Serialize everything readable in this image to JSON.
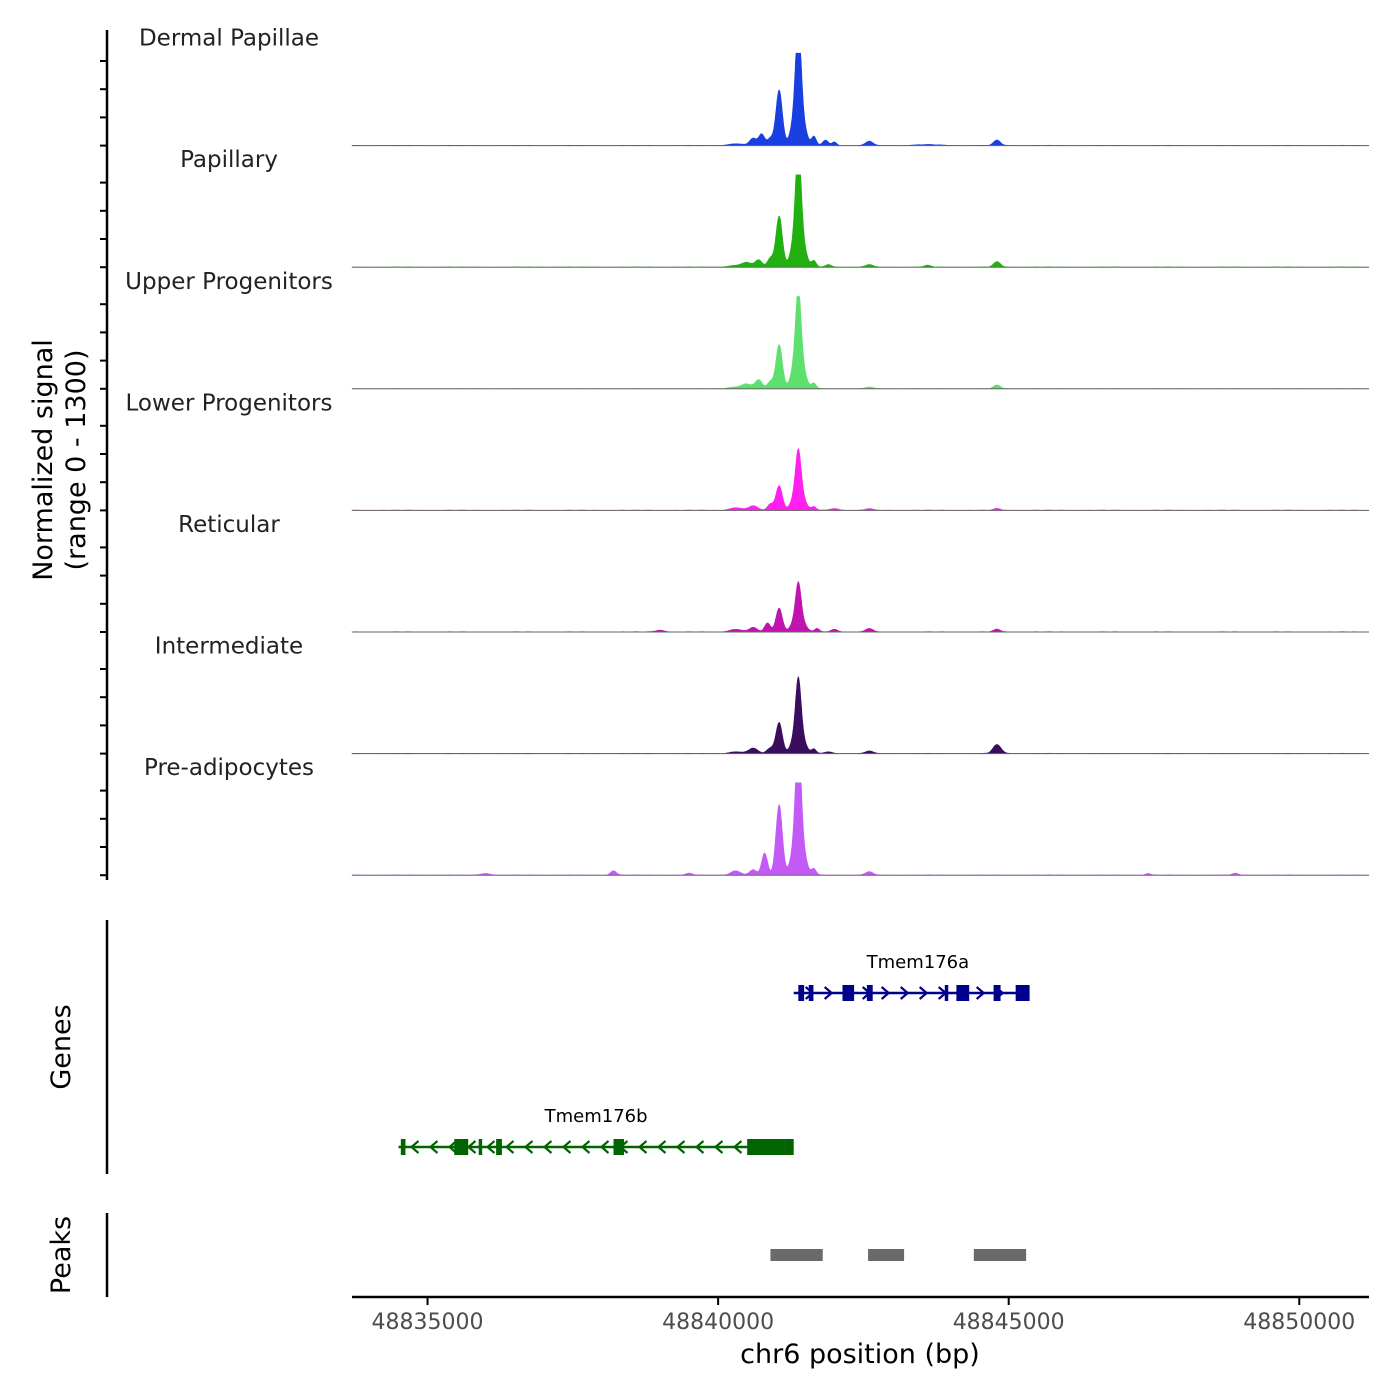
{
  "chart_data": {
    "type": "area",
    "xlabel": "chr6 position (bp)",
    "ylabel": "Normalized signal",
    "ylabel_sub": "(range 0 - 1300)",
    "xlim": [
      48833700,
      48851200
    ],
    "ylim": [
      0,
      1300
    ],
    "x_ticks": [
      48835000,
      48840000,
      48845000,
      48850000
    ],
    "x_tick_labels": [
      "48835000",
      "48840000",
      "48845000",
      "48850000"
    ],
    "tracks": [
      {
        "name": "Dermal Papillae",
        "color": "#1a3fe0",
        "peaks": [
          [
            48840600,
            0.08,
            60
          ],
          [
            48840750,
            0.13,
            50
          ],
          [
            48840900,
            0.08,
            50
          ],
          [
            48841050,
            0.63,
            55
          ],
          [
            48841380,
            0.88,
            45
          ],
          [
            48841380,
            0.55,
            90
          ],
          [
            48841650,
            0.1,
            40
          ],
          [
            48841850,
            0.06,
            50
          ],
          [
            48842000,
            0.04,
            40
          ],
          [
            48842600,
            0.05,
            60
          ],
          [
            48844800,
            0.06,
            60
          ],
          [
            48840300,
            0.02,
            120
          ],
          [
            48843600,
            0.01,
            200
          ]
        ]
      },
      {
        "name": "Papillary",
        "color": "#22b010",
        "peaks": [
          [
            48840500,
            0.05,
            80
          ],
          [
            48840700,
            0.08,
            60
          ],
          [
            48840900,
            0.1,
            50
          ],
          [
            48841050,
            0.58,
            55
          ],
          [
            48841380,
            0.85,
            45
          ],
          [
            48841380,
            0.55,
            90
          ],
          [
            48841650,
            0.07,
            40
          ],
          [
            48841900,
            0.03,
            50
          ],
          [
            48842600,
            0.03,
            60
          ],
          [
            48843600,
            0.02,
            60
          ],
          [
            48844800,
            0.06,
            60
          ],
          [
            48840300,
            0.02,
            120
          ]
        ]
      },
      {
        "name": "Upper Progenitors",
        "color": "#5ee06e",
        "peaks": [
          [
            48840500,
            0.05,
            80
          ],
          [
            48840700,
            0.1,
            60
          ],
          [
            48840900,
            0.08,
            50
          ],
          [
            48841050,
            0.5,
            55
          ],
          [
            48841380,
            0.7,
            45
          ],
          [
            48841380,
            0.45,
            90
          ],
          [
            48841650,
            0.06,
            40
          ],
          [
            48842600,
            0.02,
            60
          ],
          [
            48844800,
            0.04,
            60
          ],
          [
            48840300,
            0.02,
            120
          ]
        ]
      },
      {
        "name": "Lower Progenitors",
        "color": "#ff20f0",
        "peaks": [
          [
            48840300,
            0.03,
            100
          ],
          [
            48840600,
            0.05,
            80
          ],
          [
            48840900,
            0.07,
            50
          ],
          [
            48841050,
            0.28,
            55
          ],
          [
            48841380,
            0.42,
            45
          ],
          [
            48841380,
            0.28,
            90
          ],
          [
            48841650,
            0.04,
            40
          ],
          [
            48842000,
            0.02,
            80
          ],
          [
            48842600,
            0.02,
            60
          ],
          [
            48844800,
            0.02,
            60
          ]
        ]
      },
      {
        "name": "Reticular",
        "color": "#c014b0",
        "peaks": [
          [
            48840300,
            0.03,
            100
          ],
          [
            48840600,
            0.05,
            70
          ],
          [
            48840850,
            0.1,
            50
          ],
          [
            48841050,
            0.27,
            55
          ],
          [
            48841380,
            0.35,
            45
          ],
          [
            48841380,
            0.22,
            90
          ],
          [
            48841700,
            0.04,
            40
          ],
          [
            48842000,
            0.03,
            60
          ],
          [
            48842600,
            0.04,
            60
          ],
          [
            48844800,
            0.03,
            60
          ],
          [
            48839000,
            0.02,
            80
          ]
        ]
      },
      {
        "name": "Intermediate",
        "color": "#3a0d5e",
        "peaks": [
          [
            48840300,
            0.02,
            100
          ],
          [
            48840600,
            0.06,
            80
          ],
          [
            48840900,
            0.06,
            60
          ],
          [
            48841050,
            0.35,
            55
          ],
          [
            48841380,
            0.55,
            45
          ],
          [
            48841380,
            0.32,
            90
          ],
          [
            48841650,
            0.05,
            40
          ],
          [
            48841900,
            0.02,
            60
          ],
          [
            48842600,
            0.03,
            60
          ],
          [
            48844800,
            0.1,
            70
          ]
        ]
      },
      {
        "name": "Pre-adipocytes",
        "color": "#c35af5",
        "peaks": [
          [
            48838200,
            0.05,
            50
          ],
          [
            48840300,
            0.05,
            80
          ],
          [
            48840600,
            0.06,
            60
          ],
          [
            48840800,
            0.25,
            50
          ],
          [
            48841050,
            0.8,
            55
          ],
          [
            48841380,
            1.0,
            45
          ],
          [
            48841380,
            0.6,
            90
          ],
          [
            48841650,
            0.07,
            40
          ],
          [
            48842600,
            0.04,
            60
          ],
          [
            48847400,
            0.02,
            40
          ],
          [
            48848900,
            0.02,
            50
          ],
          [
            48839500,
            0.02,
            60
          ],
          [
            48836000,
            0.02,
            80
          ]
        ]
      }
    ],
    "genes_label": "Genes",
    "genes": [
      {
        "name": "Tmem176a",
        "strand": "+",
        "color": "#00008b",
        "start": 48841300,
        "end": 48845300,
        "exons": [
          [
            48841380,
            48841480
          ],
          [
            48841560,
            48841640
          ],
          [
            48842140,
            48842340
          ],
          [
            48842560,
            48842660
          ],
          [
            48843900,
            48843960
          ],
          [
            48844100,
            48844320
          ],
          [
            48844740,
            48844860
          ],
          [
            48845120,
            48845360
          ]
        ]
      },
      {
        "name": "Tmem176b",
        "strand": "-",
        "color": "#006400",
        "start": 48834500,
        "end": 48841300,
        "exons": [
          [
            48834540,
            48834620
          ],
          [
            48835460,
            48835700
          ],
          [
            48835880,
            48835940
          ],
          [
            48836180,
            48836280
          ],
          [
            48838200,
            48838380
          ],
          [
            48840500,
            48841150
          ],
          [
            48841150,
            48841300
          ]
        ]
      }
    ],
    "peaks_label": "Peaks",
    "peak_regions": [
      [
        48840900,
        48841800
      ],
      [
        48842580,
        48843200
      ],
      [
        48844400,
        48845300
      ]
    ]
  }
}
